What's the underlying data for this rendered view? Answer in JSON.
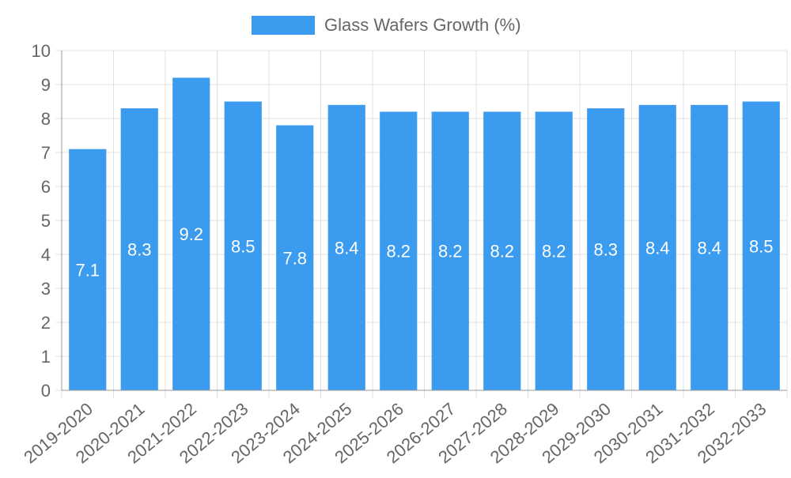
{
  "colors": {
    "bar": "#3a9bef",
    "grid": "#e0e0e0",
    "axis": "#999999",
    "text": "#666666",
    "bar_label": "#ffffff"
  },
  "chart_data": {
    "type": "bar",
    "title": "",
    "xlabel": "",
    "ylabel": "",
    "legend": {
      "position": "top-center",
      "label": "Glass Wafers Growth (%)"
    },
    "grid": true,
    "ylim": [
      0,
      10
    ],
    "yticks": [
      "0",
      "1",
      "2",
      "3",
      "4",
      "5",
      "6",
      "7",
      "8",
      "9",
      "10"
    ],
    "categories": [
      "2019-2020",
      "2020-2021",
      "2021-2022",
      "2022-2023",
      "2023-2024",
      "2024-2025",
      "2025-2026",
      "2026-2027",
      "2027-2028",
      "2028-2029",
      "2029-2030",
      "2030-2031",
      "2031-2032",
      "2032-2033"
    ],
    "series": [
      {
        "name": "Glass Wafers Growth (%)",
        "values": [
          7.1,
          8.3,
          9.2,
          8.5,
          7.8,
          8.4,
          8.2,
          8.2,
          8.2,
          8.2,
          8.3,
          8.4,
          8.4,
          8.5
        ],
        "labels": [
          "7.1",
          "8.3",
          "9.2",
          "8.5",
          "7.8",
          "8.4",
          "8.2",
          "8.2",
          "8.2",
          "8.2",
          "8.3",
          "8.4",
          "8.4",
          "8.5"
        ]
      }
    ]
  }
}
